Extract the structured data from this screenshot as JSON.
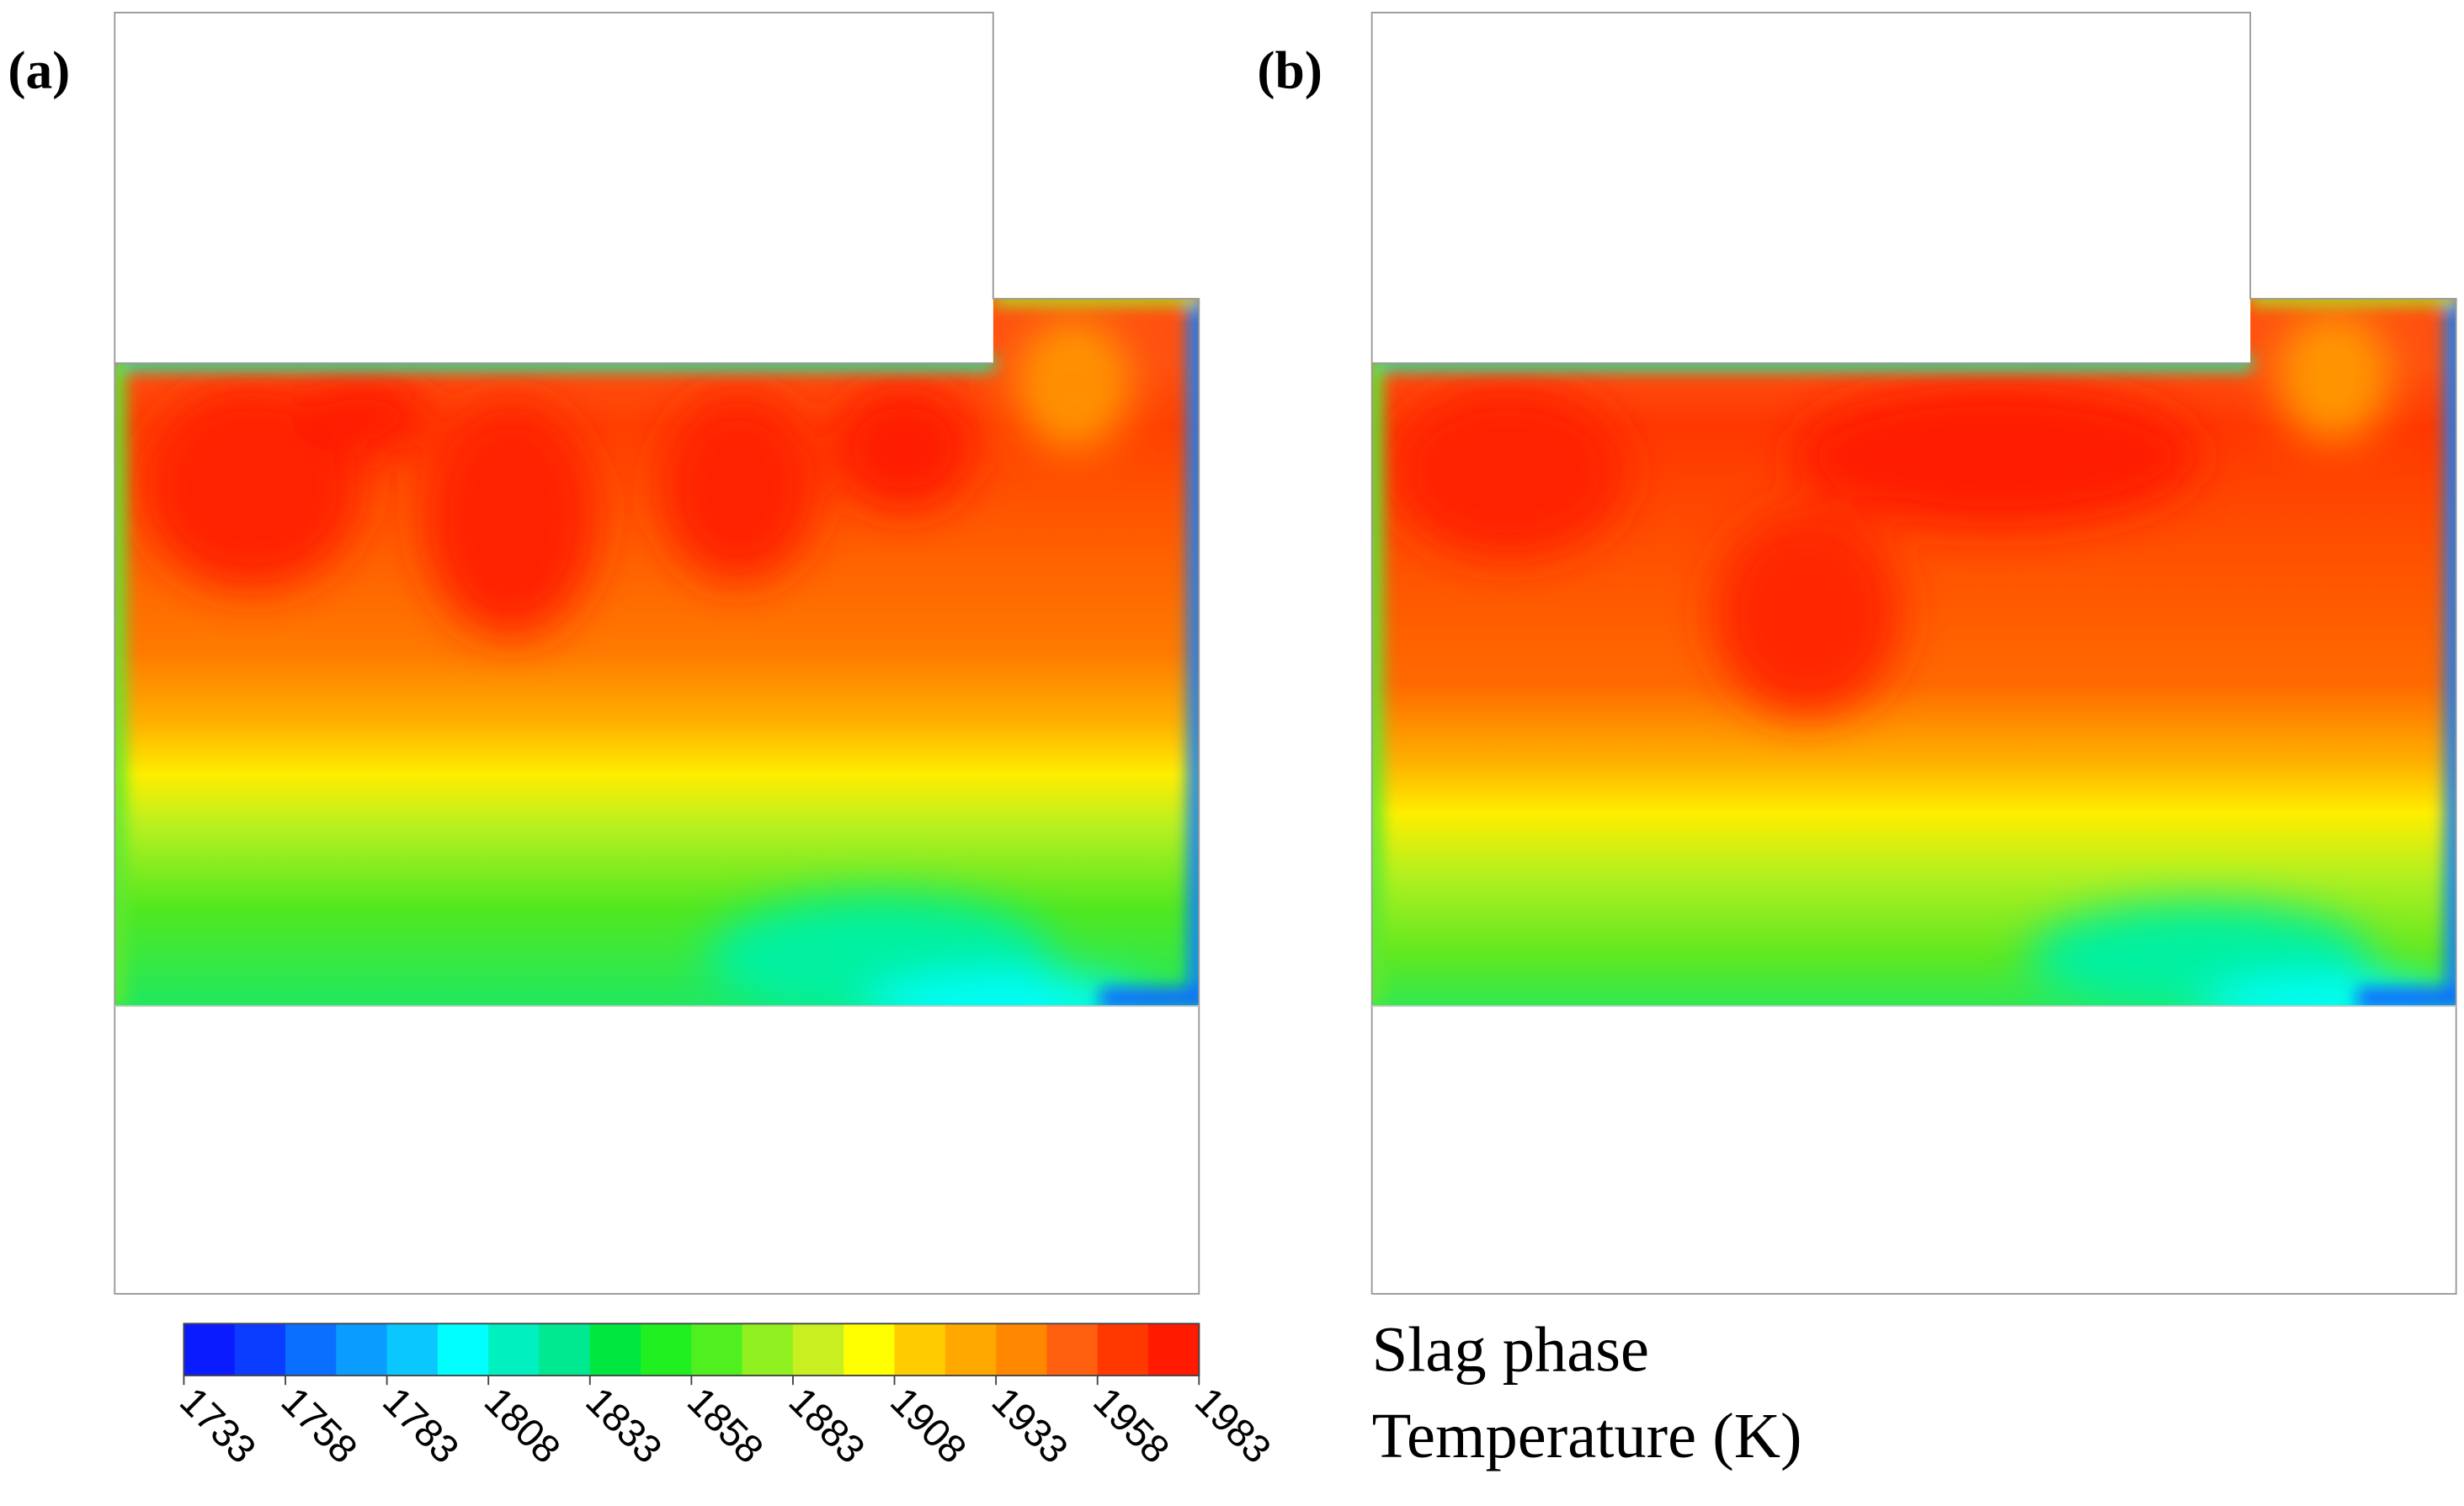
{
  "panels": [
    {
      "label": "(a)"
    },
    {
      "label": "(b)"
    }
  ],
  "colorbar": {
    "range": [
      1733,
      1983
    ],
    "ticks": [
      1733,
      1758,
      1783,
      1808,
      1833,
      1858,
      1883,
      1908,
      1933,
      1958,
      1983
    ],
    "colors": [
      "#0a1cff",
      "#0a3dff",
      "#0a6eff",
      "#0a9cff",
      "#0ac8ff",
      "#00ffff",
      "#00f0c0",
      "#00e890",
      "#00e840",
      "#20f020",
      "#50f020",
      "#90f020",
      "#c8f020",
      "#ffff00",
      "#ffcc00",
      "#ffa800",
      "#ff8800",
      "#ff6010",
      "#ff3800",
      "#ff1a00"
    ],
    "title": [
      "Slag phase",
      "Temperature (K)"
    ]
  }
}
